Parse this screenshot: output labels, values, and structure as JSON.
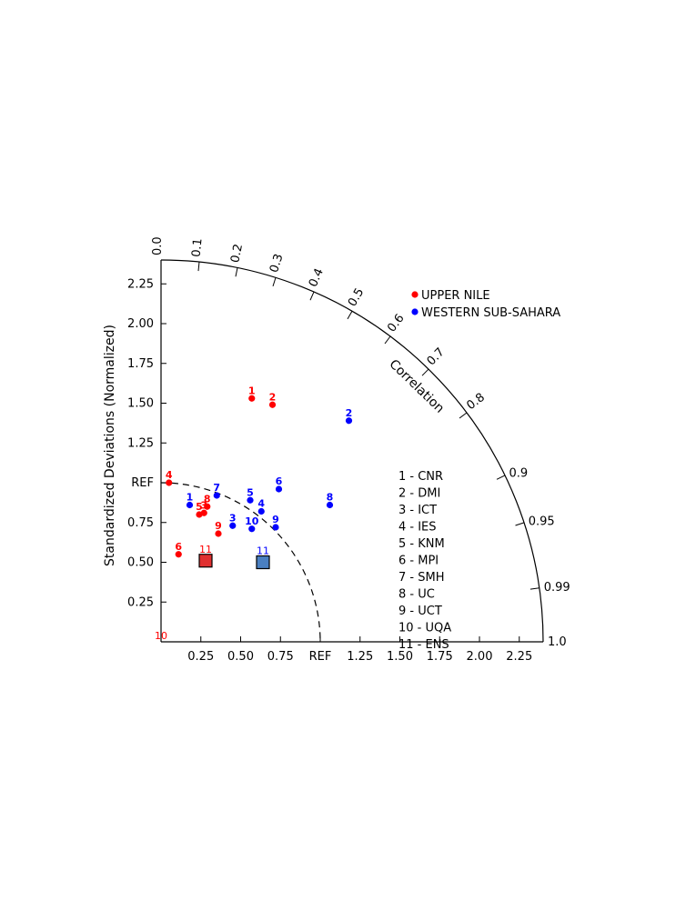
{
  "chart_data": {
    "type": "scatter",
    "subtype": "taylor-diagram",
    "ylabel": "Standardized Deviations (Normalized)",
    "arc_label": "Correlation",
    "ref_label": "REF",
    "std_ticks": [
      "0.25",
      "0.50",
      "0.75",
      "1.00",
      "1.25",
      "1.50",
      "1.75",
      "2.00",
      "2.25"
    ],
    "correlation_ticks": [
      "0.0",
      "0.1",
      "0.2",
      "0.3",
      "0.4",
      "0.5",
      "0.6",
      "0.7",
      "0.8",
      "0.9",
      "0.95",
      "0.99",
      "1.0"
    ],
    "max_std": 2.4,
    "reference_std": 1.0,
    "series": [
      {
        "name": "UPPER NILE",
        "color": "#ff0000",
        "points": [
          {
            "label": "1",
            "x": 0.57,
            "y": 1.53
          },
          {
            "label": "2",
            "x": 0.7,
            "y": 1.49
          },
          {
            "label": "4",
            "x": 0.05,
            "y": 1.0
          },
          {
            "label": "5",
            "x": 0.24,
            "y": 0.8
          },
          {
            "label": "3",
            "x": 0.27,
            "y": 0.81
          },
          {
            "label": "8",
            "x": 0.29,
            "y": 0.85
          },
          {
            "label": "9",
            "x": 0.36,
            "y": 0.68
          },
          {
            "label": "6",
            "x": 0.11,
            "y": 0.55
          },
          {
            "label": "10",
            "x": 0.0,
            "y": 0.0
          },
          {
            "label": "11",
            "x": 0.28,
            "y": 0.51,
            "marker": "square"
          }
        ]
      },
      {
        "name": "WESTERN SUB-SAHARA",
        "color": "#0000ff",
        "points": [
          {
            "label": "1",
            "x": 0.18,
            "y": 0.86
          },
          {
            "label": "2",
            "x": 1.18,
            "y": 1.39
          },
          {
            "label": "6",
            "x": 0.74,
            "y": 0.96
          },
          {
            "label": "7",
            "x": 0.35,
            "y": 0.92
          },
          {
            "label": "5",
            "x": 0.56,
            "y": 0.89
          },
          {
            "label": "4",
            "x": 0.63,
            "y": 0.82
          },
          {
            "label": "8",
            "x": 1.06,
            "y": 0.86
          },
          {
            "label": "3",
            "x": 0.45,
            "y": 0.73
          },
          {
            "label": "10",
            "x": 0.57,
            "y": 0.71
          },
          {
            "label": "9",
            "x": 0.72,
            "y": 0.72
          },
          {
            "label": "11",
            "x": 0.64,
            "y": 0.5,
            "marker": "square"
          }
        ]
      }
    ],
    "square_fills": {
      "UPPER NILE": "#e03030",
      "WESTERN SUB-SAHARA": "#4a7fc0"
    },
    "legend_position": "top-right",
    "models": [
      "1 - CNR",
      "2 - DMI",
      "3 - ICT",
      "4 - IES",
      "5 - KNM",
      "6 - MPI",
      "7 - SMH",
      "8 - UC",
      "9 - UCT",
      "10 - UQA",
      "11 - ENS"
    ]
  }
}
